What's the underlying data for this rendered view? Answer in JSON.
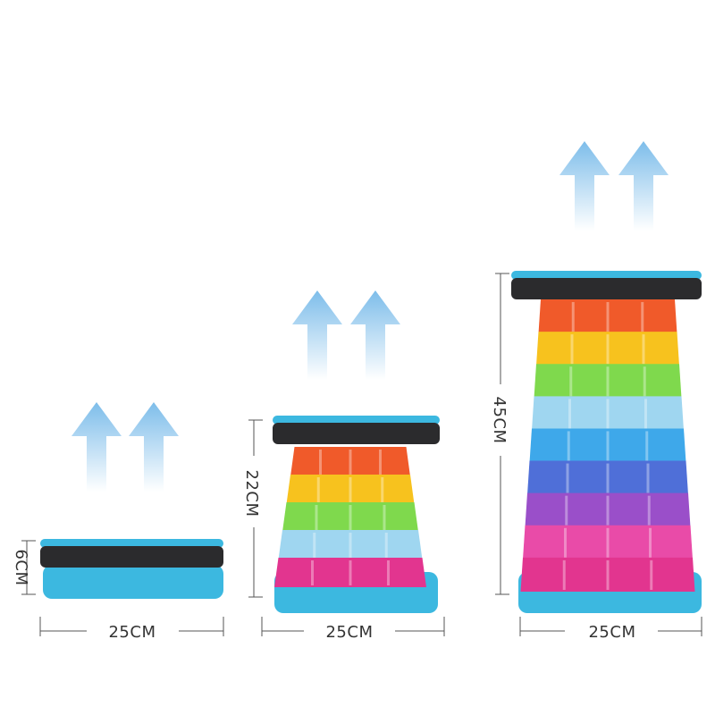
{
  "stools": [
    {
      "state": "folded",
      "height_label": "6CM",
      "width_label": "25CM"
    },
    {
      "state": "half-extended",
      "height_label": "22CM",
      "width_label": "25CM"
    },
    {
      "state": "fully-extended",
      "height_label": "45CM",
      "width_label": "25CM"
    }
  ],
  "colors": {
    "seat_blue": "#3cb8e0",
    "seat_band": "#2b2b2d",
    "arrow": "#8cc6ee",
    "layers": [
      "#f05a2a",
      "#f7c21e",
      "#7fd94d",
      "#9fd6f0",
      "#3ea8ea",
      "#4f6fd8",
      "#9a4fc9",
      "#e94ba8",
      "#e2358f"
    ]
  },
  "icons": [
    "up-arrow-icon"
  ]
}
